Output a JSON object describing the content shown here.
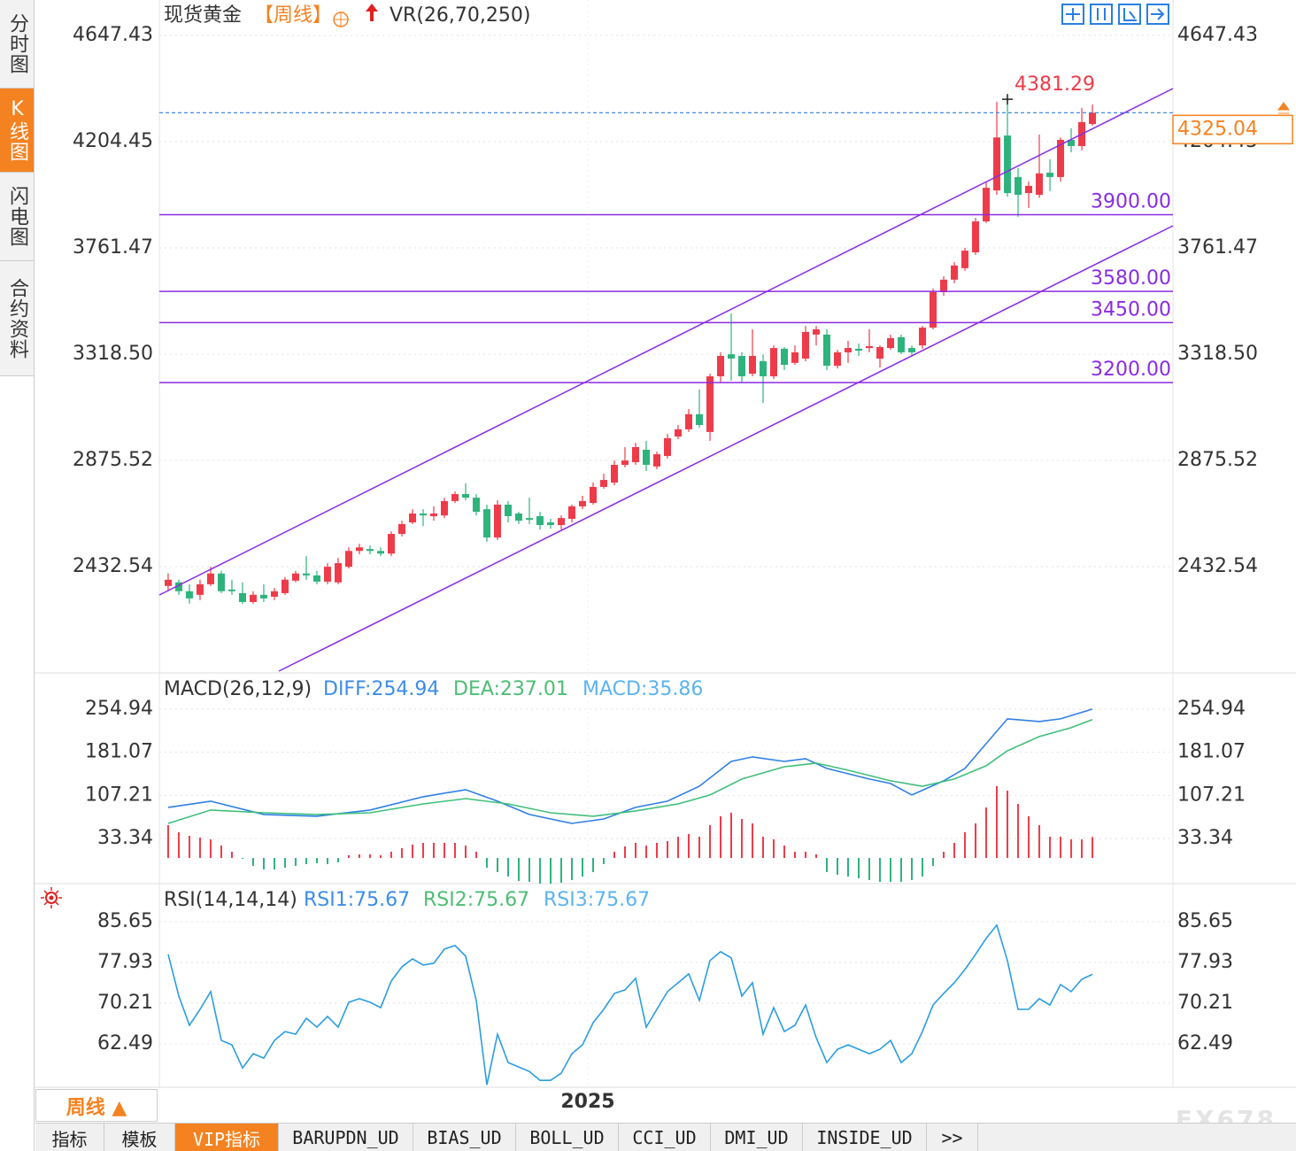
{
  "sidebar": [
    "分时图",
    "K线图",
    "闪电图",
    "合约资料"
  ],
  "period_button": "周线 ▲",
  "tabs": [
    "指标",
    "模板",
    "VIP指标",
    "BARUPDN_UD",
    "BIAS_UD",
    "BOLL_UD",
    "CCI_UD",
    "DMI_UD",
    "INSIDE_UD",
    ">>"
  ],
  "watermark": "FX678",
  "chart_data": [
    {
      "type": "candlestick",
      "title": "现货黄金",
      "period": "【周线】",
      "indicator": "VR(26,70,250)",
      "xlim": [
        -0.83,
        94.58
      ],
      "ylim": [
        1989.5,
        4776.6
      ],
      "yticks": [
        4647.43,
        4204.45,
        3761.47,
        {
          "value": 3318.5,
          "label": "3318.50"
        },
        2875.52,
        2432.54
      ],
      "grid": true,
      "up_color": "#ee3b4a",
      "down_color": "#2eb37c",
      "open": [
        2352,
        2367,
        2330,
        2315,
        2359,
        2404,
        2337,
        2322,
        2285,
        2315,
        2307,
        2322,
        2374,
        2404,
        2396,
        2370,
        2367,
        2432,
        2498,
        2506,
        2498,
        2487,
        2569,
        2617,
        2654,
        2643,
        2646,
        2706,
        2735,
        2720,
        2672,
        2554,
        2691,
        2654,
        2635,
        2643,
        2617,
        2606,
        2632,
        2684,
        2698,
        2765,
        2783,
        2857,
        2868,
        2920,
        2850,
        2894,
        2975,
        3005,
        3068,
        2994,
        3226,
        3318,
        3311,
        3237,
        3289,
        3226,
        3341,
        3282,
        3300,
        3400,
        3400,
        3270,
        3326,
        3341,
        3344,
        3300,
        3344,
        3389,
        3344,
        3355,
        3429,
        3577,
        3629,
        3677,
        3743,
        3872,
        4001,
        4230,
        4057,
        3990,
        3983,
        4075,
        4057,
        4212,
        4186,
        4278
      ],
      "high": [
        2404,
        2378,
        2359,
        2378,
        2432,
        2415,
        2378,
        2367,
        2330,
        2359,
        2344,
        2389,
        2415,
        2476,
        2415,
        2447,
        2469,
        2513,
        2528,
        2521,
        2513,
        2580,
        2624,
        2672,
        2672,
        2684,
        2720,
        2746,
        2780,
        2735,
        2691,
        2709,
        2706,
        2661,
        2720,
        2661,
        2632,
        2646,
        2691,
        2728,
        2783,
        2820,
        2875,
        2931,
        2949,
        2957,
        2912,
        2986,
        3023,
        3090,
        3171,
        3237,
        3326,
        3488,
        3326,
        3422,
        3318,
        3355,
        3348,
        3355,
        3436,
        3436,
        3422,
        3337,
        3374,
        3363,
        3422,
        3355,
        3400,
        3400,
        3355,
        3436,
        3592,
        3643,
        3702,
        3762,
        3887,
        4038,
        4370,
        4381.29,
        4094,
        4038,
        4234,
        4131,
        4222,
        4260,
        4345,
        4359
      ],
      "low": [
        2330,
        2315,
        2278,
        2293,
        2352,
        2322,
        2315,
        2278,
        2278,
        2285,
        2293,
        2315,
        2367,
        2378,
        2359,
        2359,
        2359,
        2425,
        2484,
        2484,
        2476,
        2476,
        2558,
        2610,
        2602,
        2624,
        2635,
        2698,
        2709,
        2646,
        2536,
        2543,
        2617,
        2610,
        2610,
        2587,
        2591,
        2587,
        2617,
        2672,
        2691,
        2757,
        2772,
        2846,
        2857,
        2831,
        2839,
        2883,
        2964,
        2994,
        3012,
        2957,
        3200,
        3208,
        3200,
        3226,
        3115,
        3215,
        3252,
        3274,
        3289,
        3355,
        3252,
        3259,
        3282,
        3311,
        3326,
        3263,
        3337,
        3318,
        3311,
        3341,
        3422,
        3562,
        3614,
        3666,
        3732,
        3865,
        3983,
        3975,
        3891,
        3928,
        3970,
        3998,
        4038,
        4160,
        4168,
        4271
      ],
      "close": [
        2378,
        2330,
        2300,
        2359,
        2404,
        2330,
        2330,
        2285,
        2315,
        2300,
        2330,
        2378,
        2404,
        2396,
        2370,
        2432,
        2447,
        2498,
        2513,
        2498,
        2487,
        2569,
        2610,
        2654,
        2646,
        2654,
        2706,
        2735,
        2720,
        2661,
        2554,
        2691,
        2643,
        2624,
        2628,
        2606,
        2606,
        2635,
        2684,
        2706,
        2765,
        2794,
        2857,
        2875,
        2931,
        2857,
        2901,
        2968,
        3005,
        3068,
        3023,
        3226,
        3311,
        3300,
        3226,
        3311,
        3226,
        3344,
        3274,
        3326,
        3411,
        3422,
        3270,
        3326,
        3344,
        3333,
        3352,
        3348,
        3385,
        3326,
        3326,
        3429,
        3577,
        3629,
        3688,
        3750,
        3872,
        4012,
        4222,
        3990,
        3983,
        4020,
        4072,
        4057,
        4212,
        4186,
        4286,
        4325.04
      ],
      "horizontal_lines": [
        {
          "value": 3900,
          "label": "3900.00"
        },
        {
          "value": 3580,
          "label": "3580.00"
        },
        {
          "value": 3450,
          "label": "3450.00"
        },
        {
          "value": 3200,
          "label": "3200.00"
        }
      ],
      "line_color": "#8a2be2",
      "last_price": 4325.04,
      "last_price_color": "#f58220",
      "max_color": "#ee3b4a"
    },
    {
      "type": "macd",
      "title": "MACD(26,12,9)",
      "legend": [
        {
          "text": "DIFF:254.94",
          "color": "#3c8de8"
        },
        {
          "text": "DEA:237.01",
          "color": "#4dbd74"
        },
        {
          "text": "MACD:35.86",
          "color": "#5bb4f0"
        }
      ],
      "xlim": [
        -0.83,
        94.58
      ],
      "ylim": [
        -44,
        314
      ],
      "yticks": [
        254.94,
        181.07,
        107.21,
        33.34
      ],
      "grid": true,
      "bars": {
        "up_color": "#ee3b4a",
        "down_color": "#2eb37c",
        "values": [
          56.1,
          44.0,
          37.9,
          34.9,
          31.9,
          21.2,
          10.6,
          -1.5,
          -13.7,
          -19.7,
          -19.7,
          -16.7,
          -13.7,
          -10.6,
          -9.1,
          -10.6,
          -7.6,
          4.6,
          6.1,
          6.1,
          4.6,
          10.6,
          16.7,
          22.8,
          25.8,
          25.8,
          25.8,
          25.8,
          21.2,
          10.6,
          -16.7,
          -24.3,
          -31.9,
          -39.4,
          -41.0,
          -44.0,
          -44.0,
          -42.5,
          -37.9,
          -31.9,
          -24.3,
          -10.6,
          10.6,
          19.7,
          25.8,
          21.2,
          25.8,
          28.8,
          36.4,
          41.0,
          36.4,
          56.1,
          71.3,
          77.4,
          66.7,
          59.2,
          36.4,
          31.9,
          21.2,
          10.6,
          10.6,
          6.1,
          -24.3,
          -28.8,
          -31.9,
          -34.9,
          -37.9,
          -41.0,
          -41.0,
          -41.0,
          -37.9,
          -31.9,
          -13.7,
          10.6,
          25.8,
          44.0,
          59.2,
          86.5,
          122.9,
          115.3,
          92.5,
          71.3,
          56.1,
          36.4,
          36.4,
          31.9,
          31.9,
          35.86
        ]
      },
      "series": [
        {
          "name": "DIFF",
          "color": "#2f7fe6",
          "x": [
            0,
            4,
            9,
            14,
            19,
            24,
            28,
            31,
            34,
            38,
            41,
            44,
            47,
            50,
            53,
            55,
            58,
            60,
            62,
            66,
            68,
            70,
            73,
            75,
            77,
            79,
            82,
            84,
            87
          ],
          "values": [
            86.6,
            97.2,
            74.4,
            71.4,
            82.0,
            104.8,
            116.9,
            97.2,
            74.4,
            59.2,
            66.8,
            86.6,
            97.2,
            122.9,
            165.4,
            173.0,
            165.4,
            170.0,
            153.3,
            135.1,
            127.5,
            107.8,
            132.1,
            153.3,
            195.8,
            238.3,
            233.7,
            238.3,
            254.94
          ]
        },
        {
          "name": "DEA",
          "color": "#3fbf7a",
          "x": [
            0,
            4,
            9,
            14,
            19,
            24,
            28,
            32,
            36,
            40,
            44,
            48,
            51,
            54,
            58,
            61,
            64,
            68,
            71,
            74,
            77,
            79,
            82,
            85,
            87
          ],
          "values": [
            59.2,
            82.0,
            77.4,
            74.4,
            77.4,
            92.6,
            101.7,
            92.6,
            77.4,
            71.4,
            80.5,
            92.6,
            107.8,
            135.1,
            156.3,
            162.4,
            150.3,
            132.1,
            122.9,
            135.1,
            157.9,
            183.6,
            207.9,
            223.1,
            237.01
          ]
        }
      ]
    },
    {
      "type": "line",
      "title": "RSI(14,14,14)",
      "legend": [
        {
          "text": "RSI1:75.67",
          "color": "#3c8de8"
        },
        {
          "text": "RSI2:75.67",
          "color": "#4dbd74"
        },
        {
          "text": "RSI3:75.67",
          "color": "#5bb4f0"
        }
      ],
      "xlim": [
        -0.83,
        94.58
      ],
      "ylim": [
        54.3,
        92.5
      ],
      "yticks": [
        85.65,
        77.93,
        70.21,
        62.49
      ],
      "grid": true,
      "xticks": [
        {
          "value": 39.5,
          "label": "2025"
        }
      ],
      "series": [
        {
          "name": "RSI1",
          "color": "#2a9de0",
          "values": [
            79.44,
            71.55,
            66.02,
            69.04,
            72.39,
            63.17,
            62.33,
            57.96,
            60.65,
            59.81,
            63.17,
            64.84,
            64.34,
            67.36,
            65.68,
            67.7,
            65.68,
            70.38,
            71.05,
            70.38,
            69.37,
            74.41,
            77.09,
            78.6,
            77.43,
            77.76,
            80.45,
            81.12,
            79.11,
            70.72,
            54.77,
            64.34,
            58.97,
            58.13,
            57.29,
            55.61,
            55.61,
            56.96,
            60.65,
            62.33,
            66.52,
            69.04,
            72.06,
            72.73,
            74.91,
            65.68,
            69.04,
            72.39,
            74.07,
            75.75,
            70.72,
            78.27,
            79.95,
            78.77,
            71.55,
            74.07,
            64.34,
            69.37,
            64.84,
            66.02,
            69.87,
            63.67,
            58.97,
            61.49,
            62.33,
            61.49,
            60.65,
            61.49,
            63.17,
            58.97,
            60.65,
            64.84,
            69.87,
            72.06,
            74.07,
            76.59,
            79.44,
            82.46,
            84.98,
            78.27,
            69.04,
            69.04,
            71.05,
            69.87,
            73.74,
            72.39,
            74.74,
            75.67
          ]
        }
      ]
    }
  ]
}
